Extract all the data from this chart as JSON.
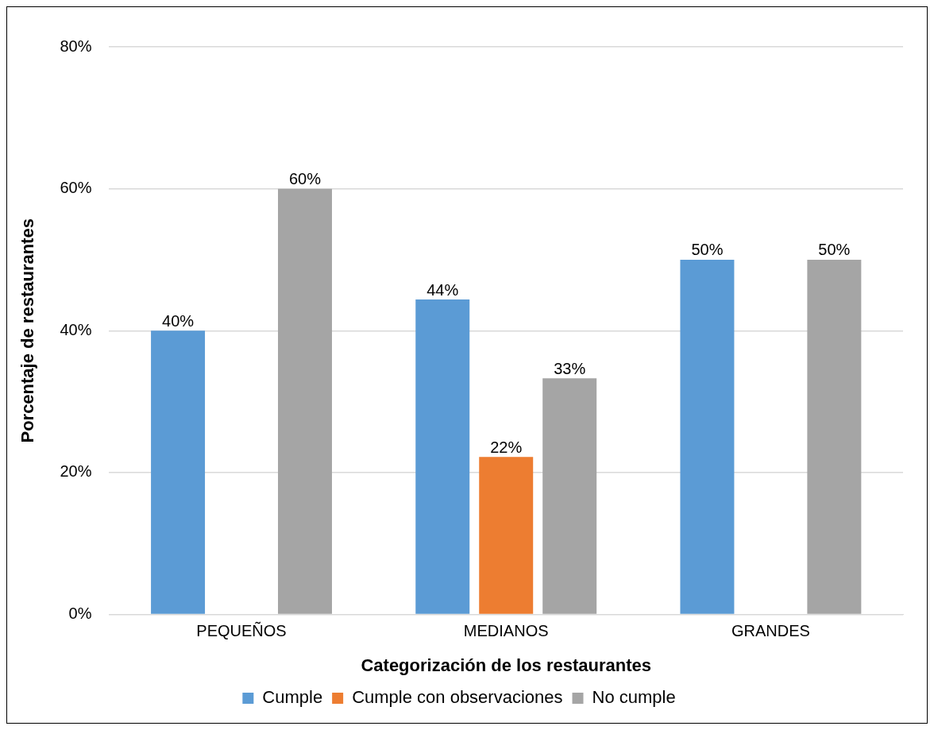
{
  "chart_data": {
    "type": "bar",
    "xlabel": "Categorización de los restaurantes",
    "ylabel": "Porcentaje de restaurantes",
    "categories": [
      "PEQUEÑOS",
      "MEDIANOS",
      "GRANDES"
    ],
    "series": [
      {
        "name": "Cumple",
        "color": "#5b9bd5",
        "values": [
          40,
          44.4,
          50
        ],
        "value_labels": [
          "40%",
          "44%",
          "50%"
        ]
      },
      {
        "name": "Cumple con observaciones",
        "color": "#ed7d31",
        "values": [
          null,
          22.2,
          null
        ],
        "value_labels": [
          null,
          "22%",
          null
        ]
      },
      {
        "name": "No cumple",
        "color": "#a5a5a5",
        "values": [
          60,
          33.3,
          50
        ],
        "value_labels": [
          "60%",
          "33%",
          "50%"
        ]
      }
    ],
    "ylim": [
      0,
      80
    ],
    "yticks": [
      {
        "value": 0,
        "label": "0%"
      },
      {
        "value": 20,
        "label": "20%"
      },
      {
        "value": 40,
        "label": "40%"
      },
      {
        "value": 60,
        "label": "60%"
      },
      {
        "value": 80,
        "label": "80%"
      }
    ],
    "grid": "y",
    "legend": "bottom"
  }
}
